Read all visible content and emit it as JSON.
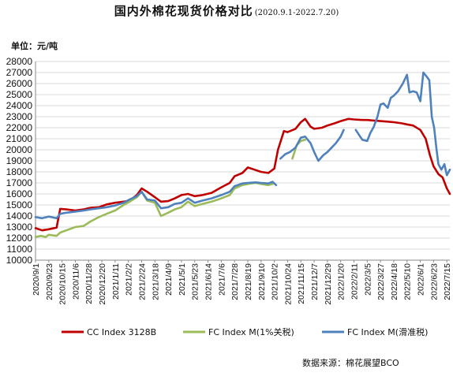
{
  "title": {
    "main": "国内外棉花现货价格对比",
    "range": "(2020.9.1-2022.7.20)"
  },
  "unit_label": "单位：元/吨",
  "source": "数据来源：棉花展望BCO",
  "colors": {
    "cc": "#c00000",
    "fc1": "#9bbb59",
    "fc_slide": "#4f81bd",
    "grid": "#d9d9d9"
  },
  "chart_data": {
    "type": "line",
    "title": "国内外棉花现货价格对比",
    "ylabel": "元/吨",
    "ylim": [
      10000,
      28000
    ],
    "y_ticks": [
      10000,
      11000,
      12000,
      13000,
      14000,
      15000,
      16000,
      17000,
      18000,
      19000,
      20000,
      21000,
      22000,
      23000,
      24000,
      25000,
      26000,
      27000,
      28000
    ],
    "x_range": [
      "2020-09-01",
      "2022-07-20"
    ],
    "x_tick_labels": [
      "2020/9/1",
      "2020/9/23",
      "2020/10/15",
      "2020/11/6",
      "2020/11/28",
      "2020/12/20",
      "2021/1/11",
      "2021/2/2",
      "2021/2/24",
      "2021/3/18",
      "2021/4/9",
      "2021/5/1",
      "2021/5/23",
      "2021/6/14",
      "2021/7/6",
      "2021/7/28",
      "2021/8/19",
      "2021/9/10",
      "2021/10/2",
      "2021/10/24",
      "2021/11/15",
      "2021/12/7",
      "2021/12/29",
      "2022/1/20",
      "2022/2/11",
      "2022/3/5",
      "2022/3/27",
      "2022/4/18",
      "2022/5/10",
      "2022/6/1",
      "2022/6/23",
      "2022/7/15"
    ],
    "grid": "horizontal",
    "legend_position": "bottom",
    "series": [
      {
        "name": "CC Index 3128B",
        "color": "#c00000",
        "points": [
          [
            "2020-09-01",
            12900
          ],
          [
            "2020-09-12",
            12700
          ],
          [
            "2020-09-23",
            12800
          ],
          [
            "2020-10-06",
            12950
          ],
          [
            "2020-10-12",
            14650
          ],
          [
            "2020-10-22",
            14600
          ],
          [
            "2020-11-06",
            14500
          ],
          [
            "2020-11-20",
            14600
          ],
          [
            "2020-12-01",
            14750
          ],
          [
            "2020-12-15",
            14800
          ],
          [
            "2020-12-28",
            15050
          ],
          [
            "2021-01-11",
            15200
          ],
          [
            "2021-01-25",
            15300
          ],
          [
            "2021-02-04",
            15400
          ],
          [
            "2021-02-16",
            15900
          ],
          [
            "2021-02-24",
            16500
          ],
          [
            "2021-03-05",
            16200
          ],
          [
            "2021-03-18",
            15700
          ],
          [
            "2021-03-28",
            15300
          ],
          [
            "2021-04-09",
            15350
          ],
          [
            "2021-04-20",
            15600
          ],
          [
            "2021-05-01",
            15900
          ],
          [
            "2021-05-12",
            16000
          ],
          [
            "2021-05-23",
            15800
          ],
          [
            "2021-06-05",
            15900
          ],
          [
            "2021-06-20",
            16100
          ],
          [
            "2021-07-06",
            16600
          ],
          [
            "2021-07-20",
            17000
          ],
          [
            "2021-07-28",
            17600
          ],
          [
            "2021-08-10",
            17900
          ],
          [
            "2021-08-19",
            18400
          ],
          [
            "2021-08-30",
            18200
          ],
          [
            "2021-09-10",
            18000
          ],
          [
            "2021-09-22",
            17900
          ],
          [
            "2021-10-02",
            18300
          ],
          [
            "2021-10-08",
            20000
          ],
          [
            "2021-10-18",
            21700
          ],
          [
            "2021-10-24",
            21600
          ],
          [
            "2021-11-06",
            21900
          ],
          [
            "2021-11-15",
            22500
          ],
          [
            "2021-11-22",
            22800
          ],
          [
            "2021-12-01",
            22100
          ],
          [
            "2021-12-07",
            21900
          ],
          [
            "2021-12-20",
            22000
          ],
          [
            "2021-12-29",
            22200
          ],
          [
            "2022-01-10",
            22400
          ],
          [
            "2022-01-20",
            22600
          ],
          [
            "2022-02-02",
            22800
          ],
          [
            "2022-02-11",
            22750
          ],
          [
            "2022-02-25",
            22700
          ],
          [
            "2022-03-05",
            22700
          ],
          [
            "2022-03-16",
            22650
          ],
          [
            "2022-03-27",
            22600
          ],
          [
            "2022-04-08",
            22550
          ],
          [
            "2022-04-18",
            22500
          ],
          [
            "2022-05-01",
            22400
          ],
          [
            "2022-05-10",
            22300
          ],
          [
            "2022-05-20",
            22200
          ],
          [
            "2022-06-01",
            21800
          ],
          [
            "2022-06-10",
            21000
          ],
          [
            "2022-06-17",
            19500
          ],
          [
            "2022-06-23",
            18500
          ],
          [
            "2022-07-01",
            17800
          ],
          [
            "2022-07-08",
            17500
          ],
          [
            "2022-07-15",
            16500
          ],
          [
            "2022-07-20",
            16000
          ]
        ]
      },
      {
        "name": "FC Index M(1%关税)",
        "color": "#9bbb59",
        "points": [
          [
            "2020-09-01",
            12100
          ],
          [
            "2020-09-10",
            12200
          ],
          [
            "2020-09-18",
            12100
          ],
          [
            "2020-09-23",
            12300
          ],
          [
            "2020-10-06",
            12200
          ],
          [
            "2020-10-12",
            12500
          ],
          [
            "2020-10-22",
            12700
          ],
          [
            "2020-11-06",
            13000
          ],
          [
            "2020-11-20",
            13100
          ],
          [
            "2020-12-01",
            13500
          ],
          [
            "2020-12-15",
            13900
          ],
          [
            "2020-12-28",
            14200
          ],
          [
            "2021-01-11",
            14500
          ],
          [
            "2021-01-25",
            15000
          ],
          [
            "2021-02-04",
            15300
          ],
          [
            "2021-02-16",
            15700
          ],
          [
            "2021-02-24",
            16200
          ],
          [
            "2021-03-05",
            15400
          ],
          [
            "2021-03-18",
            15200
          ],
          [
            "2021-03-28",
            14000
          ],
          [
            "2021-04-09",
            14300
          ],
          [
            "2021-04-20",
            14600
          ],
          [
            "2021-05-01",
            14800
          ],
          [
            "2021-05-12",
            15300
          ],
          [
            "2021-05-23",
            14900
          ],
          [
            "2021-06-05",
            15100
          ],
          [
            "2021-06-20",
            15300
          ],
          [
            "2021-07-06",
            15600
          ],
          [
            "2021-07-20",
            15900
          ],
          [
            "2021-07-28",
            16500
          ],
          [
            "2021-08-10",
            16800
          ],
          [
            "2021-08-19",
            16900
          ],
          [
            "2021-09-01",
            17000
          ],
          [
            "2021-09-10",
            16900
          ],
          [
            "2021-09-22",
            16800
          ],
          [
            "2021-09-29",
            16900
          ],
          [
            "2021-10-24",
            null
          ],
          [
            "2021-11-01",
            19200
          ],
          [
            "2021-11-08",
            20400
          ],
          [
            "2021-11-15",
            20800
          ],
          [
            "2021-11-22",
            20900
          ]
        ]
      },
      {
        "name": "FC Index M(滑准税)",
        "color": "#4f81bd",
        "points": [
          [
            "2020-09-01",
            13900
          ],
          [
            "2020-09-12",
            13800
          ],
          [
            "2020-09-23",
            13950
          ],
          [
            "2020-10-06",
            13800
          ],
          [
            "2020-10-12",
            14200
          ],
          [
            "2020-10-22",
            14300
          ],
          [
            "2020-11-06",
            14400
          ],
          [
            "2020-11-20",
            14500
          ],
          [
            "2020-12-01",
            14600
          ],
          [
            "2020-12-15",
            14700
          ],
          [
            "2020-12-28",
            14800
          ],
          [
            "2021-01-11",
            14950
          ],
          [
            "2021-01-25",
            15200
          ],
          [
            "2021-02-04",
            15500
          ],
          [
            "2021-02-16",
            15800
          ],
          [
            "2021-02-24",
            16200
          ],
          [
            "2021-03-05",
            15500
          ],
          [
            "2021-03-18",
            15400
          ],
          [
            "2021-03-28",
            14700
          ],
          [
            "2021-04-09",
            14800
          ],
          [
            "2021-04-20",
            15100
          ],
          [
            "2021-05-01",
            15200
          ],
          [
            "2021-05-12",
            15600
          ],
          [
            "2021-05-23",
            15200
          ],
          [
            "2021-06-05",
            15400
          ],
          [
            "2021-06-20",
            15600
          ],
          [
            "2021-07-06",
            15900
          ],
          [
            "2021-07-20",
            16200
          ],
          [
            "2021-07-28",
            16700
          ],
          [
            "2021-08-10",
            16950
          ],
          [
            "2021-08-19",
            17000
          ],
          [
            "2021-09-01",
            17050
          ],
          [
            "2021-09-10",
            17000
          ],
          [
            "2021-09-22",
            16950
          ],
          [
            "2021-09-29",
            17100
          ],
          [
            "2021-10-05",
            16800
          ],
          [
            "2021-10-10",
            null
          ],
          [
            "2021-10-12",
            19200
          ],
          [
            "2021-10-20",
            19600
          ],
          [
            "2021-10-28",
            19800
          ],
          [
            "2021-11-06",
            20200
          ],
          [
            "2021-11-15",
            21100
          ],
          [
            "2021-11-22",
            21200
          ],
          [
            "2021-12-01",
            20600
          ],
          [
            "2021-12-07",
            19800
          ],
          [
            "2021-12-14",
            19000
          ],
          [
            "2021-12-22",
            19500
          ],
          [
            "2021-12-29",
            19800
          ],
          [
            "2022-01-05",
            20200
          ],
          [
            "2022-01-12",
            20600
          ],
          [
            "2022-01-20",
            21200
          ],
          [
            "2022-01-25",
            21800
          ],
          [
            "2022-02-11",
            null
          ],
          [
            "2022-02-14",
            21800
          ],
          [
            "2022-02-20",
            21300
          ],
          [
            "2022-02-25",
            20900
          ],
          [
            "2022-03-05",
            20800
          ],
          [
            "2022-03-10",
            21500
          ],
          [
            "2022-03-16",
            22100
          ],
          [
            "2022-03-22",
            23000
          ],
          [
            "2022-03-27",
            24100
          ],
          [
            "2022-04-01",
            24200
          ],
          [
            "2022-04-08",
            23800
          ],
          [
            "2022-04-13",
            24700
          ],
          [
            "2022-04-18",
            24900
          ],
          [
            "2022-04-25",
            25300
          ],
          [
            "2022-05-03",
            26000
          ],
          [
            "2022-05-10",
            26800
          ],
          [
            "2022-05-14",
            25200
          ],
          [
            "2022-05-20",
            25300
          ],
          [
            "2022-05-26",
            25200
          ],
          [
            "2022-06-01",
            24400
          ],
          [
            "2022-06-06",
            27000
          ],
          [
            "2022-06-12",
            26600
          ],
          [
            "2022-06-16",
            26300
          ],
          [
            "2022-06-20",
            23000
          ],
          [
            "2022-06-24",
            22000
          ],
          [
            "2022-06-28",
            20000
          ],
          [
            "2022-07-01",
            18700
          ],
          [
            "2022-07-06",
            18200
          ],
          [
            "2022-07-11",
            18700
          ],
          [
            "2022-07-15",
            17700
          ],
          [
            "2022-07-20",
            18200
          ]
        ]
      }
    ]
  }
}
